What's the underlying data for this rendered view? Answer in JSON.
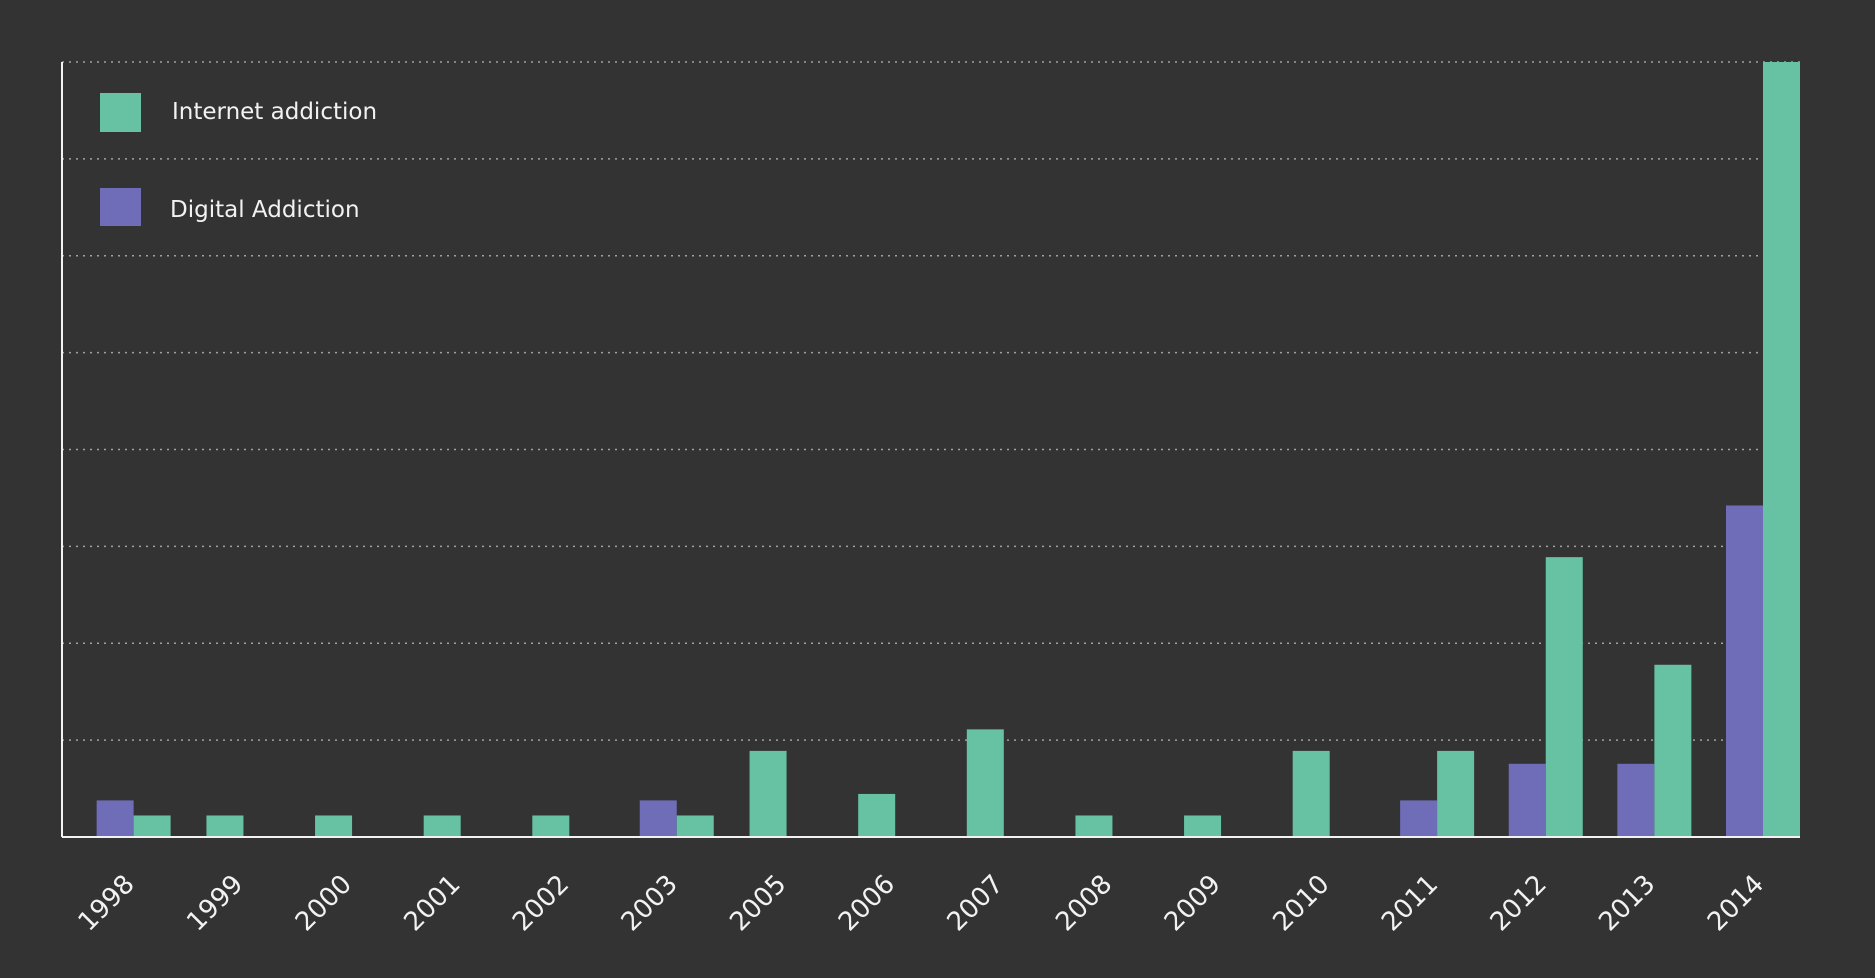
{
  "chart_data": {
    "type": "bar",
    "categories": [
      "1998",
      "1999",
      "2000",
      "2001",
      "2002",
      "2003",
      "2005",
      "2006",
      "2007",
      "2008",
      "2009",
      "2010",
      "2011",
      "2012",
      "2013",
      "2014"
    ],
    "series": [
      {
        "name": "Internet addiction",
        "color": "#66c2a2",
        "values": [
          1,
          1,
          1,
          1,
          1,
          1,
          4,
          2,
          5,
          1,
          1,
          4,
          4,
          13,
          8,
          36
        ]
      },
      {
        "name": "Digital Addiction",
        "color": "#6f6db7",
        "values": [
          1.7,
          0,
          0,
          0,
          0,
          1.7,
          0,
          0,
          0,
          0,
          0,
          0,
          1.7,
          3.4,
          3.4,
          15.4
        ]
      }
    ],
    "title": "",
    "xlabel": "",
    "ylabel": "",
    "ylim": [
      0,
      36
    ],
    "grid": true,
    "legend_position": "top-left",
    "background_color": "#333333"
  }
}
